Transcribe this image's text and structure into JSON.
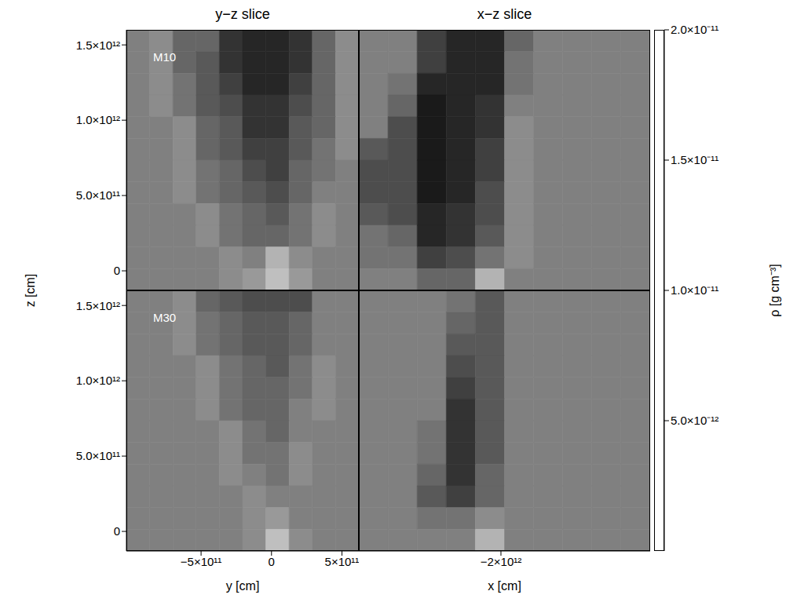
{
  "chart_data": {
    "type": "heatmap",
    "ylabel": "z [cm]",
    "ylim": [
      -130000000000.0,
      1600000000000.0
    ],
    "yticks": [
      0,
      {
        "value": 500000000000.0,
        "label": "5.0×10¹¹"
      },
      {
        "value": 1000000000000.0,
        "label": "1.0×10¹²"
      },
      {
        "value": 1500000000000.0,
        "label": "1.5×10¹²"
      }
    ],
    "colorbar": {
      "label": "ρ [g cm⁻³]",
      "range": [
        0,
        2e-11
      ],
      "ticks": [
        {
          "value": 5e-12,
          "label": "5.0×10⁻¹²"
        },
        {
          "value": 1e-11,
          "label": "1.0×10⁻¹¹"
        },
        {
          "value": 1.5e-11,
          "label": "1.5×10⁻¹¹"
        },
        {
          "value": 2e-11,
          "label": "2.0×10⁻¹¹"
        }
      ]
    },
    "columns": [
      {
        "title": "y−z slice",
        "xlabel": "y [cm]",
        "xlim": [
          -1030000000000.0,
          620000000000.0
        ],
        "xticks": [
          {
            "value": -500000000000.0,
            "label": "−5×10¹¹"
          },
          0,
          {
            "value": 500000000000.0,
            "label": "5×10¹¹"
          }
        ]
      },
      {
        "title": "x−z slice",
        "xlabel": "x [cm]",
        "xlim": [
          -3000000000000.0,
          -950000000000.0
        ],
        "xticks": [
          {
            "value": -2000000000000.0,
            "label": "−2×10¹²"
          }
        ]
      }
    ],
    "rows": [
      {
        "label": "M10",
        "cells": [
          [
            [
              1e-11,
              1.1e-11,
              8e-12,
              8e-12,
              4e-12,
              3e-12,
              3e-12,
              4e-12,
              8e-12,
              1.1e-11
            ],
            [
              1e-11,
              1.1e-11,
              8e-12,
              7e-12,
              4e-12,
              3e-12,
              3e-12,
              4e-12,
              8e-12,
              1.1e-11
            ],
            [
              1e-11,
              1.1e-11,
              9e-12,
              7e-12,
              5e-12,
              3e-12,
              3e-12,
              5e-12,
              8e-12,
              1.1e-11
            ],
            [
              1e-11,
              1.1e-11,
              9e-12,
              7e-12,
              6e-12,
              4e-12,
              4e-12,
              6e-12,
              8e-12,
              1.1e-11
            ],
            [
              1e-11,
              1e-11,
              1.1e-11,
              8e-12,
              7e-12,
              4e-12,
              4e-12,
              7e-12,
              8e-12,
              1.1e-11
            ],
            [
              1e-11,
              1e-11,
              1.1e-11,
              8e-12,
              7e-12,
              5e-12,
              5e-12,
              7e-12,
              9e-12,
              1.1e-11
            ],
            [
              1e-11,
              1e-11,
              1.1e-11,
              9e-12,
              8e-12,
              6e-12,
              5e-12,
              8e-12,
              9e-12,
              1e-11
            ],
            [
              1e-11,
              1e-11,
              1.1e-11,
              9e-12,
              8e-12,
              7e-12,
              6e-12,
              8e-12,
              1e-11,
              1e-11
            ],
            [
              1e-11,
              1e-11,
              1e-11,
              1.1e-11,
              9e-12,
              8e-12,
              7e-12,
              9e-12,
              1.1e-11,
              1e-11
            ],
            [
              1e-11,
              1e-11,
              1e-11,
              1.1e-11,
              9e-12,
              8e-12,
              8e-12,
              9e-12,
              1.1e-11,
              1e-11
            ],
            [
              1e-11,
              1e-11,
              1e-11,
              1e-11,
              1.1e-11,
              1e-11,
              1.4e-11,
              1.1e-11,
              1e-11,
              1e-11
            ],
            [
              1e-11,
              1e-11,
              1e-11,
              1e-11,
              1.1e-11,
              1.2e-11,
              1.5e-11,
              1.2e-11,
              1e-11,
              1e-11
            ]
          ],
          [
            [
              1e-11,
              1e-11,
              5e-12,
              3e-12,
              3e-12,
              8e-12,
              1e-11,
              1e-11,
              1e-11,
              1e-11
            ],
            [
              1e-11,
              1e-11,
              5e-12,
              3e-12,
              3e-12,
              9e-12,
              1e-11,
              1e-11,
              1e-11,
              1e-11
            ],
            [
              1e-11,
              9e-12,
              3e-12,
              3e-12,
              3e-12,
              9e-12,
              1e-11,
              1e-11,
              1e-11,
              1e-11
            ],
            [
              1e-11,
              8e-12,
              2e-12,
              3e-12,
              4e-12,
              1e-11,
              1e-11,
              1e-11,
              1e-11,
              1e-11
            ],
            [
              1e-11,
              6e-12,
              2e-12,
              3e-12,
              4e-12,
              1.1e-11,
              1e-11,
              1e-11,
              1e-11,
              1e-11
            ],
            [
              7e-12,
              6e-12,
              2e-12,
              3e-12,
              5e-12,
              1.1e-11,
              1e-11,
              1e-11,
              1e-11,
              1e-11
            ],
            [
              6e-12,
              6e-12,
              2e-12,
              3e-12,
              5e-12,
              1.1e-11,
              1e-11,
              1e-11,
              1e-11,
              1e-11
            ],
            [
              6e-12,
              6e-12,
              2e-12,
              3e-12,
              6e-12,
              1.1e-11,
              1e-11,
              1e-11,
              1e-11,
              1e-11
            ],
            [
              7e-12,
              6e-12,
              3e-12,
              4e-12,
              6e-12,
              1.1e-11,
              1e-11,
              1e-11,
              1e-11,
              1e-11
            ],
            [
              9e-12,
              8e-12,
              3e-12,
              4e-12,
              7e-12,
              1.1e-11,
              1e-11,
              1e-11,
              1e-11,
              1e-11
            ],
            [
              9e-12,
              9e-12,
              5e-12,
              6e-12,
              9e-12,
              1.1e-11,
              1e-11,
              1e-11,
              1e-11,
              1e-11
            ],
            [
              1e-11,
              1e-11,
              8e-12,
              8e-12,
              1.4e-11,
              1e-11,
              1e-11,
              1e-11,
              1e-11,
              1e-11
            ]
          ]
        ]
      },
      {
        "label": "M30",
        "cells": [
          [
            [
              1e-11,
              1e-11,
              1.1e-11,
              8e-12,
              7e-12,
              6e-12,
              6e-12,
              6e-12,
              1e-11,
              1e-11
            ],
            [
              1e-11,
              1e-11,
              1.1e-11,
              9e-12,
              8e-12,
              7e-12,
              7e-12,
              8e-12,
              1e-11,
              1e-11
            ],
            [
              1e-11,
              1e-11,
              1.1e-11,
              9e-12,
              8e-12,
              7e-12,
              7e-12,
              8e-12,
              1e-11,
              1e-11
            ],
            [
              1e-11,
              1e-11,
              1e-11,
              1.1e-11,
              9e-12,
              8e-12,
              7e-12,
              9e-12,
              1.1e-11,
              1e-11
            ],
            [
              1e-11,
              1e-11,
              1e-11,
              1.1e-11,
              9e-12,
              8e-12,
              8e-12,
              9e-12,
              1.1e-11,
              1e-11
            ],
            [
              1e-11,
              1e-11,
              1e-11,
              1.1e-11,
              9e-12,
              8e-12,
              8e-12,
              1e-11,
              1.1e-11,
              1e-11
            ],
            [
              1e-11,
              1e-11,
              1e-11,
              1e-11,
              1.1e-11,
              9e-12,
              8e-12,
              1e-11,
              1e-11,
              1e-11
            ],
            [
              1e-11,
              1e-11,
              1e-11,
              1e-11,
              1.1e-11,
              9e-12,
              9e-12,
              1.1e-11,
              1e-11,
              1e-11
            ],
            [
              1e-11,
              1e-11,
              1e-11,
              1e-11,
              1.1e-11,
              1e-11,
              9e-12,
              1.1e-11,
              1e-11,
              1e-11
            ],
            [
              1e-11,
              1e-11,
              1e-11,
              1e-11,
              1e-11,
              1.1e-11,
              1e-11,
              1e-11,
              1e-11,
              1e-11
            ],
            [
              1e-11,
              1e-11,
              1e-11,
              1e-11,
              1e-11,
              1.1e-11,
              1.2e-11,
              1e-11,
              1e-11,
              1e-11
            ],
            [
              1e-11,
              1e-11,
              1e-11,
              1e-11,
              1e-11,
              1.1e-11,
              1.5e-11,
              1.1e-11,
              1e-11,
              1e-11
            ]
          ],
          [
            [
              1e-11,
              1e-11,
              1e-11,
              9e-12,
              7e-12,
              1e-11,
              1e-11,
              1e-11,
              1e-11,
              1e-11
            ],
            [
              1e-11,
              1e-11,
              1e-11,
              8e-12,
              7e-12,
              1e-11,
              1e-11,
              1e-11,
              1e-11,
              1e-11
            ],
            [
              1e-11,
              1e-11,
              1e-11,
              7e-12,
              7e-12,
              1e-11,
              1e-11,
              1e-11,
              1e-11,
              1e-11
            ],
            [
              1e-11,
              1e-11,
              1e-11,
              6e-12,
              7e-12,
              1e-11,
              1e-11,
              1e-11,
              1e-11,
              1e-11
            ],
            [
              1e-11,
              1e-11,
              1e-11,
              5e-12,
              7e-12,
              1e-11,
              1e-11,
              1e-11,
              1e-11,
              1e-11
            ],
            [
              1e-11,
              1e-11,
              1e-11,
              4e-12,
              7e-12,
              1e-11,
              1e-11,
              1e-11,
              1e-11,
              1e-11
            ],
            [
              1e-11,
              1e-11,
              9e-12,
              4e-12,
              7e-12,
              1e-11,
              1e-11,
              1e-11,
              1e-11,
              1e-11
            ],
            [
              1e-11,
              1e-11,
              9e-12,
              4e-12,
              7e-12,
              1e-11,
              1e-11,
              1e-11,
              1e-11,
              1e-11
            ],
            [
              1e-11,
              1e-11,
              8e-12,
              4e-12,
              8e-12,
              1e-11,
              1e-11,
              1e-11,
              1e-11,
              1e-11
            ],
            [
              1e-11,
              1e-11,
              7e-12,
              5e-12,
              8e-12,
              1e-11,
              1e-11,
              1e-11,
              1e-11,
              1e-11
            ],
            [
              1e-11,
              1e-11,
              9e-12,
              9e-12,
              1.1e-11,
              1e-11,
              1e-11,
              1e-11,
              1e-11,
              1e-11
            ],
            [
              1e-11,
              1e-11,
              1e-11,
              1e-11,
              1.4e-11,
              1e-11,
              1e-11,
              1e-11,
              1e-11,
              1e-11
            ]
          ]
        ]
      }
    ]
  }
}
